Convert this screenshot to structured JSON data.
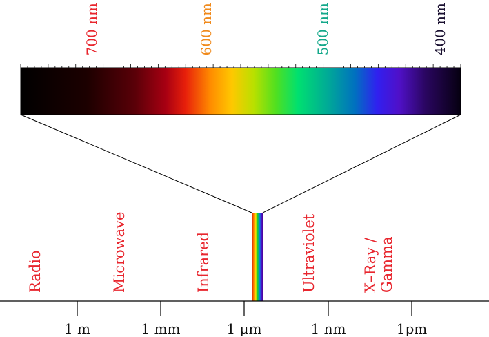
{
  "colors": {
    "band_label": "#e8262e",
    "axis": "#000000"
  },
  "visible_spectrum": {
    "wavelength_labels": [
      {
        "text": "700 nm",
        "color": "#e8262e"
      },
      {
        "text": "600 nm",
        "color": "#f08a1c"
      },
      {
        "text": "500 nm",
        "color": "#13a88a"
      },
      {
        "text": "400 nm",
        "color": "#1a1030"
      }
    ]
  },
  "bands": [
    {
      "lines": [
        "Radio"
      ]
    },
    {
      "lines": [
        "Microwave"
      ]
    },
    {
      "lines": [
        "Infrared"
      ]
    },
    {
      "lines": [
        "Ultraviolet"
      ]
    },
    {
      "lines": [
        "X–Ray /",
        "Gamma"
      ]
    }
  ],
  "axis": {
    "tick_labels": [
      "1 m",
      "1 mm",
      "1 μm",
      "1 nm",
      "1pm"
    ]
  }
}
